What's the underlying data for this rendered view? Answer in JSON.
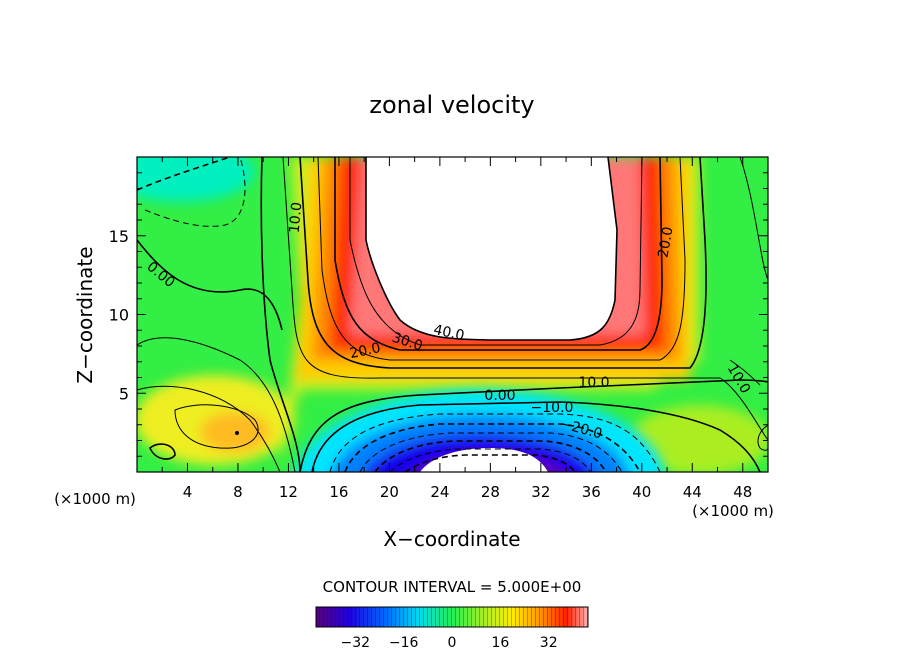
{
  "chart_data": {
    "type": "contour",
    "title": "zonal velocity",
    "xlabel": "X−coordinate",
    "ylabel": "Z−coordinate",
    "x_unit_left": "(×1000 m)",
    "x_unit_right": "(×1000 m)",
    "xlim": [
      0,
      50
    ],
    "ylim": [
      0,
      20
    ],
    "x_ticks": [
      "4",
      "8",
      "12",
      "16",
      "20",
      "24",
      "28",
      "32",
      "36",
      "40",
      "44",
      "48"
    ],
    "y_ticks": [
      "5",
      "10",
      "15"
    ],
    "contour_interval_text": "CONTOUR INTERVAL = 5.000E+00",
    "contour_labels": [
      "40.0",
      "30.0",
      "20.0",
      "10.0",
      "20.0",
      "10.0",
      "0.00",
      "−10.0",
      "−20.0",
      "10.0",
      "0.00"
    ],
    "colorbar_ticks": [
      "−32",
      "−16",
      "0",
      "16",
      "32"
    ],
    "colorbar_range": [
      -45,
      45
    ],
    "features": [
      {
        "kind": "max",
        "x": 30,
        "z": 15,
        "value": 45
      },
      {
        "kind": "min",
        "x": 30,
        "z": 1,
        "value": -40
      },
      {
        "kind": "local-max",
        "x": 8,
        "z": 2.5,
        "value": 12
      }
    ]
  },
  "colors": {
    "colormap": [
      "#6600aa",
      "#1f00ee",
      "#0055ff",
      "#00ccff",
      "#00ffaa",
      "#33ff33",
      "#aaee22",
      "#ffee00",
      "#ff9900",
      "#ff3300",
      "#ee2222",
      "#ffbbbb"
    ]
  }
}
